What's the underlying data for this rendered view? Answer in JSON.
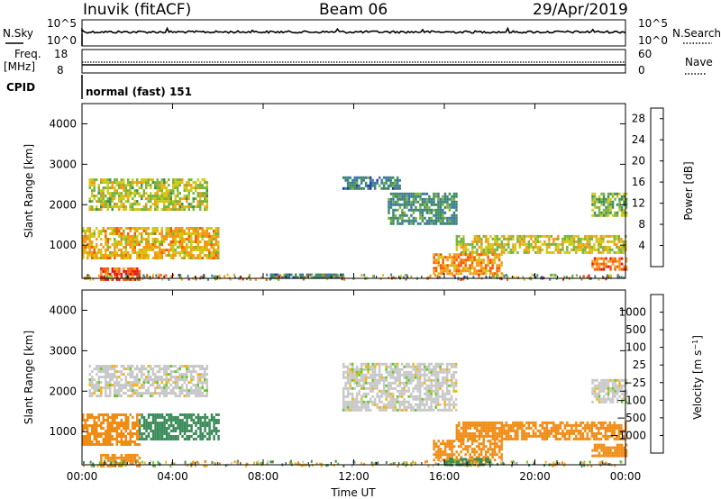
{
  "header": {
    "station": "Inuvik (fitACF)",
    "beam": "Beam 06",
    "date": "29/Apr/2019"
  },
  "panels": {
    "nsky": {
      "left_label": "N.Sky",
      "right_label": "N.Search",
      "left_ticks": [
        "10^5",
        "10^0"
      ],
      "right_ticks": [
        "10^5",
        "10^0"
      ]
    },
    "freq": {
      "left_label": "Freq.",
      "left_unit": "[MHz]",
      "left_ticks": [
        "18",
        "8"
      ],
      "right_ticks": [
        "60",
        "0"
      ],
      "right_label": "Nave"
    },
    "cpid": {
      "label": "CPID",
      "value": "normal (fast) 151"
    }
  },
  "chart_data": [
    {
      "type": "heatmap",
      "title": "",
      "quantity": "Power",
      "xlabel": "Time UT",
      "ylabel": "Slant Range [km]",
      "x_ticks": [
        "00:00",
        "04:00",
        "08:00",
        "12:00",
        "16:00",
        "20:00",
        "00:00"
      ],
      "xlim_hours": [
        0,
        24
      ],
      "ylim_km": [
        180,
        4500
      ],
      "y_ticks": [
        1000,
        2000,
        3000,
        4000
      ],
      "colorbar": {
        "label": "Power [dB]",
        "ticks": [
          4,
          8,
          12,
          16,
          20,
          24,
          28
        ],
        "range": [
          0,
          30
        ],
        "colors": [
          "#0000ff",
          "#1e3ca0",
          "#3c78a0",
          "#3c8c5a",
          "#78b43c",
          "#d2c814",
          "#fa9614",
          "#f55a0a",
          "#e61414"
        ]
      },
      "regions": [
        {
          "t": [
            0.3,
            5.5
          ],
          "r": [
            1850,
            2650
          ],
          "level": 17
        },
        {
          "t": [
            0.0,
            6.0
          ],
          "r": [
            700,
            1450
          ],
          "level": 20
        },
        {
          "t": [
            0.8,
            2.5
          ],
          "r": [
            180,
            450
          ],
          "level": 26
        },
        {
          "t": [
            8.3,
            11.5
          ],
          "r": [
            180,
            300
          ],
          "level": 10
        },
        {
          "t": [
            11.5,
            14.0
          ],
          "r": [
            2400,
            2700
          ],
          "level": 10
        },
        {
          "t": [
            13.5,
            16.5
          ],
          "r": [
            1500,
            2300
          ],
          "level": 11
        },
        {
          "t": [
            16.5,
            24.0
          ],
          "r": [
            800,
            1250
          ],
          "level": 18
        },
        {
          "t": [
            15.5,
            18.5
          ],
          "r": [
            300,
            800
          ],
          "level": 22
        },
        {
          "t": [
            22.5,
            24.0
          ],
          "r": [
            1700,
            2300
          ],
          "level": 15
        },
        {
          "t": [
            22.5,
            24.0
          ],
          "r": [
            400,
            700
          ],
          "level": 24
        }
      ]
    },
    {
      "type": "heatmap",
      "title": "",
      "quantity": "Velocity",
      "xlabel": "Time UT",
      "ylabel": "Slant Range [km]",
      "x_ticks": [
        "00:00",
        "04:00",
        "08:00",
        "12:00",
        "16:00",
        "20:00",
        "00:00"
      ],
      "xlim_hours": [
        0,
        24
      ],
      "ylim_km": [
        180,
        4500
      ],
      "y_ticks": [
        1000,
        2000,
        3000,
        4000
      ],
      "colorbar": {
        "label": "Velocity [m s^-1]",
        "tick_labels": [
          "1000",
          "500",
          "100",
          "25",
          "−25",
          "−100",
          "−500",
          "−1000"
        ],
        "colors": [
          "#1e3cc8",
          "#2a6aaa",
          "#3c8c5a",
          "#64c828",
          "#c8c8c8",
          "#f0b414",
          "#f08c14",
          "#f05014",
          "#e61414"
        ]
      },
      "regions": [
        {
          "t": [
            0.3,
            5.5
          ],
          "r": [
            1850,
            2650
          ],
          "velocity": 0
        },
        {
          "t": [
            0.0,
            2.5
          ],
          "r": [
            700,
            1450
          ],
          "velocity": -150
        },
        {
          "t": [
            2.5,
            6.0
          ],
          "r": [
            800,
            1450
          ],
          "velocity": 300
        },
        {
          "t": [
            0.8,
            2.5
          ],
          "r": [
            180,
            450
          ],
          "velocity": -150
        },
        {
          "t": [
            11.5,
            16.5
          ],
          "r": [
            1500,
            2700
          ],
          "velocity": 0
        },
        {
          "t": [
            16.5,
            24.0
          ],
          "r": [
            800,
            1250
          ],
          "velocity": -300
        },
        {
          "t": [
            15.5,
            18.5
          ],
          "r": [
            300,
            800
          ],
          "velocity": -300
        },
        {
          "t": [
            16.0,
            18.0
          ],
          "r": [
            180,
            350
          ],
          "velocity": 150
        },
        {
          "t": [
            22.5,
            24.0
          ],
          "r": [
            1700,
            2300
          ],
          "velocity": 0
        },
        {
          "t": [
            22.5,
            24.0
          ],
          "r": [
            400,
            700
          ],
          "velocity": -400
        }
      ]
    }
  ]
}
